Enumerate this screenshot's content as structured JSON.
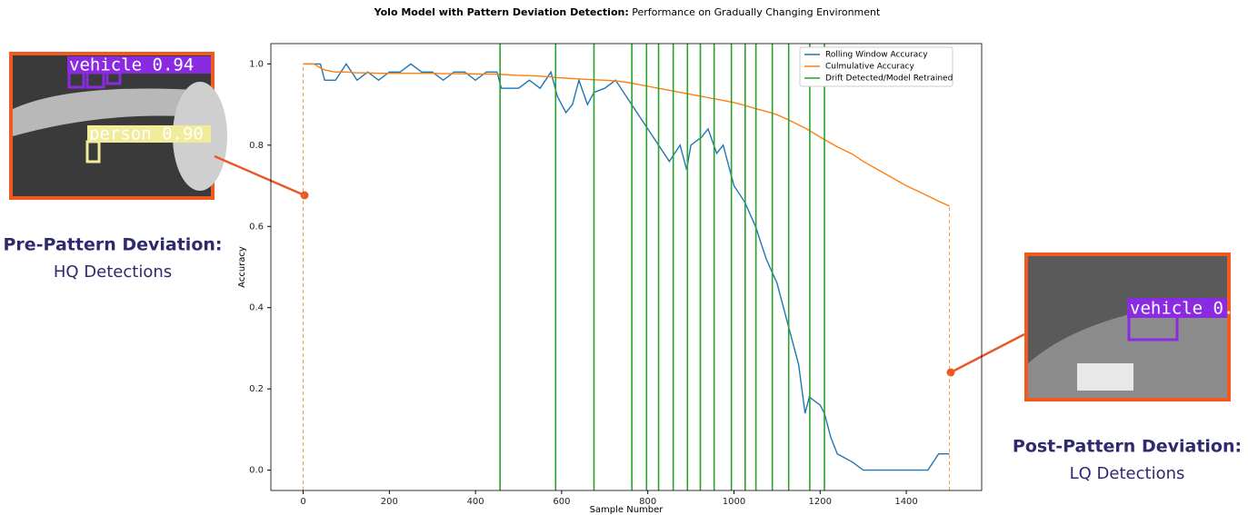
{
  "chart_data": {
    "type": "line",
    "title": "Yolo Model with Pattern Deviation Detection:",
    "subtitle": "Performance on Gradually Changing Environment",
    "xlabel": "Sample Number",
    "ylabel": "Accuracy",
    "xlim": [
      -75,
      1575
    ],
    "ylim": [
      -0.05,
      1.05
    ],
    "xticks": [
      0,
      200,
      400,
      600,
      800,
      1000,
      1200,
      1400
    ],
    "yticks": [
      {
        "value": 0,
        "label": "0.0"
      },
      0.2,
      0.4,
      0.6,
      0.8,
      {
        "value": 1,
        "label": "1.0"
      }
    ],
    "legend": "upper right",
    "x": [
      0,
      25,
      40,
      50,
      75,
      100,
      125,
      150,
      175,
      200,
      225,
      250,
      275,
      300,
      325,
      350,
      375,
      400,
      425,
      450,
      460,
      500,
      525,
      550,
      575,
      590,
      610,
      625,
      640,
      660,
      675,
      700,
      725,
      750,
      775,
      800,
      825,
      850,
      875,
      890,
      900,
      925,
      940,
      960,
      975,
      1000,
      1025,
      1050,
      1075,
      1100,
      1125,
      1150,
      1165,
      1175,
      1200,
      1210,
      1225,
      1240,
      1275,
      1300,
      1350,
      1400,
      1450,
      1475,
      1500
    ],
    "series": [
      {
        "name": "Rolling Window Accuracy",
        "color": "#1f77b4",
        "values": [
          1.0,
          1.0,
          1.0,
          0.96,
          0.96,
          1.0,
          0.96,
          0.98,
          0.96,
          0.98,
          0.98,
          1.0,
          0.98,
          0.98,
          0.96,
          0.98,
          0.98,
          0.96,
          0.98,
          0.98,
          0.94,
          0.94,
          0.96,
          0.94,
          0.98,
          0.92,
          0.88,
          0.9,
          0.96,
          0.9,
          0.93,
          0.94,
          0.96,
          0.92,
          0.88,
          0.84,
          0.8,
          0.76,
          0.8,
          0.74,
          0.8,
          0.82,
          0.84,
          0.78,
          0.8,
          0.7,
          0.66,
          0.6,
          0.52,
          0.46,
          0.36,
          0.26,
          0.14,
          0.18,
          0.16,
          0.14,
          0.08,
          0.04,
          0.02,
          0.0,
          0.0,
          0.0,
          0.0,
          0.04,
          0.04
        ]
      },
      {
        "name": "Culmulative Accuracy",
        "color": "#ff7f0e",
        "values": [
          1.0,
          1.0,
          0.99,
          0.985,
          0.98,
          0.98,
          0.978,
          0.978,
          0.977,
          0.977,
          0.977,
          0.977,
          0.977,
          0.977,
          0.976,
          0.976,
          0.976,
          0.975,
          0.975,
          0.975,
          0.974,
          0.972,
          0.971,
          0.97,
          0.968,
          0.966,
          0.965,
          0.964,
          0.963,
          0.962,
          0.961,
          0.96,
          0.958,
          0.955,
          0.95,
          0.945,
          0.94,
          0.935,
          0.93,
          0.927,
          0.925,
          0.92,
          0.917,
          0.913,
          0.91,
          0.905,
          0.898,
          0.89,
          0.883,
          0.875,
          0.863,
          0.85,
          0.842,
          0.836,
          0.82,
          0.814,
          0.805,
          0.796,
          0.778,
          0.76,
          0.73,
          0.7,
          0.675,
          0.662,
          0.65
        ]
      },
      {
        "name": "Drift Detected/Model Retrained",
        "color": "#2ca02c",
        "type": "vline",
        "x": [
          457,
          586,
          675,
          763,
          797,
          825,
          859,
          892,
          922,
          954,
          994,
          1026,
          1051,
          1089,
          1127,
          1176,
          1210
        ]
      }
    ],
    "annotations": [
      {
        "title": "Pre-Pattern Deviation:",
        "subtitle": "HQ Detections",
        "labels": [
          "vehicle 0.94",
          "person 0.90"
        ]
      },
      {
        "title": "Post-Pattern Deviation:",
        "subtitle": "LQ Detections",
        "labels": [
          "vehicle 0."
        ]
      }
    ]
  }
}
